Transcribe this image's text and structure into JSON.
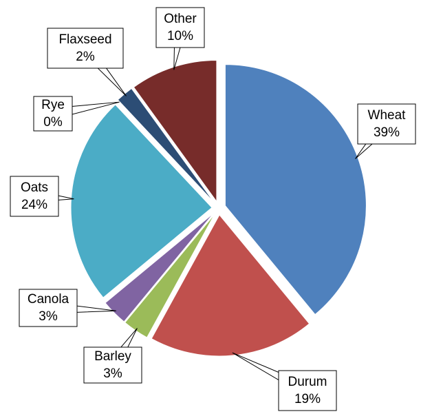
{
  "chart_data": {
    "type": "pie",
    "categories": [
      "Wheat",
      "Durum",
      "Barley",
      "Canola",
      "Oats",
      "Rye",
      "Flaxseed",
      "Other"
    ],
    "values": [
      39,
      19,
      3,
      3,
      24,
      0,
      2,
      10
    ],
    "value_labels": [
      "39%",
      "19%",
      "3%",
      "3%",
      "24%",
      "0%",
      "2%",
      "10%"
    ],
    "colors": [
      "#4f81bd",
      "#c0504d",
      "#9bbb59",
      "#8064a2",
      "#4bacc6",
      "#f79646",
      "#2c4d75",
      "#772c2a"
    ]
  }
}
